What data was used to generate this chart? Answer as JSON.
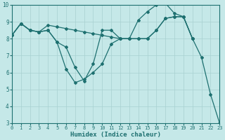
{
  "xlabel": "Humidex (Indice chaleur)",
  "xlim": [
    0,
    23
  ],
  "ylim": [
    3,
    10
  ],
  "yticks": [
    3,
    4,
    5,
    6,
    7,
    8,
    9,
    10
  ],
  "xticks": [
    0,
    1,
    2,
    3,
    4,
    5,
    6,
    7,
    8,
    9,
    10,
    11,
    12,
    13,
    14,
    15,
    16,
    17,
    18,
    19,
    20,
    21,
    22,
    23
  ],
  "background_color": "#c5e8e8",
  "grid_color": "#a8d0d0",
  "line_color": "#1e7070",
  "line1_x": [
    0,
    1,
    2,
    3,
    4,
    5,
    6,
    7,
    8,
    9,
    10,
    11,
    12,
    13,
    14,
    15,
    16,
    17,
    18,
    19,
    20,
    21,
    22,
    23
  ],
  "line1_y": [
    8.2,
    8.9,
    8.5,
    8.4,
    8.5,
    7.8,
    6.2,
    5.4,
    5.6,
    6.0,
    6.5,
    7.7,
    8.0,
    8.0,
    9.1,
    9.6,
    10.0,
    10.1,
    9.5,
    9.3,
    8.0,
    6.9,
    4.7,
    3.0
  ],
  "line2_x": [
    0,
    1,
    2,
    3,
    4,
    5,
    6,
    7,
    8,
    9,
    10,
    11,
    12,
    13,
    14,
    15,
    16,
    17,
    18,
    19,
    20
  ],
  "line2_y": [
    8.2,
    8.9,
    8.5,
    8.4,
    8.5,
    7.8,
    7.5,
    6.3,
    5.5,
    6.5,
    8.5,
    8.5,
    8.0,
    8.0,
    8.0,
    8.0,
    8.5,
    9.2,
    9.3,
    9.3,
    8.0
  ],
  "line3_x": [
    0,
    1,
    2,
    3,
    4,
    5,
    6,
    7,
    8,
    9,
    10,
    11,
    12,
    13,
    14,
    15,
    16,
    17,
    18,
    19,
    20
  ],
  "line3_y": [
    8.2,
    8.9,
    8.5,
    8.4,
    8.8,
    8.7,
    8.6,
    8.5,
    8.4,
    8.3,
    8.2,
    8.1,
    8.0,
    8.0,
    8.0,
    8.0,
    8.5,
    9.2,
    9.3,
    9.3,
    8.0
  ]
}
